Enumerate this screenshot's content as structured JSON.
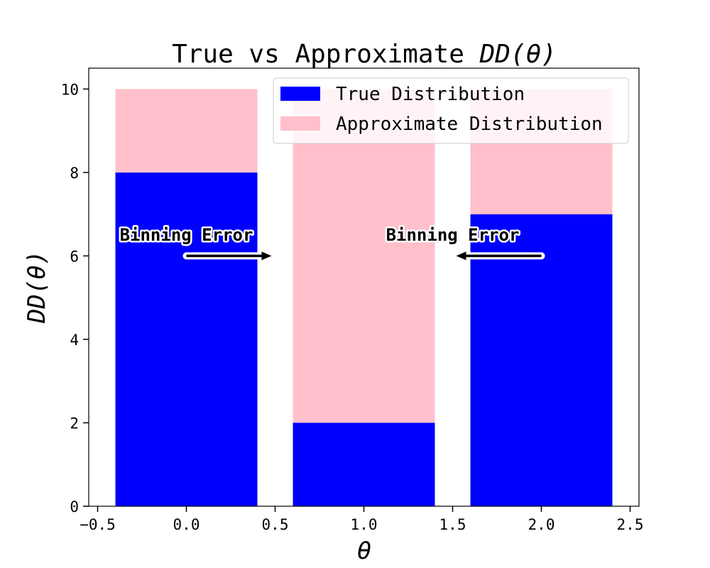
{
  "chart_data": {
    "type": "bar",
    "title": "True vs Approximate",
    "title_math": "DD(θ)",
    "xlabel": "θ",
    "ylabel": "DD(θ)",
    "xlim": [
      -0.55,
      2.55
    ],
    "ylim": [
      0,
      10.5
    ],
    "bar_width": 0.8,
    "x": [
      0,
      1,
      2
    ],
    "series": [
      {
        "name": "True Distribution",
        "color": "#0000ff",
        "values": [
          8,
          2,
          7
        ]
      },
      {
        "name": "Approximate Distribution",
        "color": "#ffc0cb",
        "values": [
          2,
          8,
          3
        ],
        "stacked_on": "True Distribution"
      }
    ],
    "xticks": [
      -0.5,
      0.0,
      0.5,
      1.0,
      1.5,
      2.0,
      2.5
    ],
    "xtick_labels": [
      "−0.5",
      "0.0",
      "0.5",
      "1.0",
      "1.5",
      "2.0",
      "2.5"
    ],
    "yticks": [
      0,
      2,
      4,
      6,
      8,
      10
    ],
    "ytick_labels": [
      "0",
      "2",
      "4",
      "6",
      "8",
      "10"
    ],
    "legend_position": "top-right",
    "annotations": [
      {
        "text": "Binning Error",
        "text_x": 0.0,
        "text_y": 6.5,
        "arrow_from": [
          0.0,
          6.0
        ],
        "arrow_to": [
          0.48,
          6.0
        ]
      },
      {
        "text": "Binning Error",
        "text_x": 1.5,
        "text_y": 6.5,
        "arrow_from": [
          2.0,
          6.0
        ],
        "arrow_to": [
          1.52,
          6.0
        ]
      }
    ]
  }
}
